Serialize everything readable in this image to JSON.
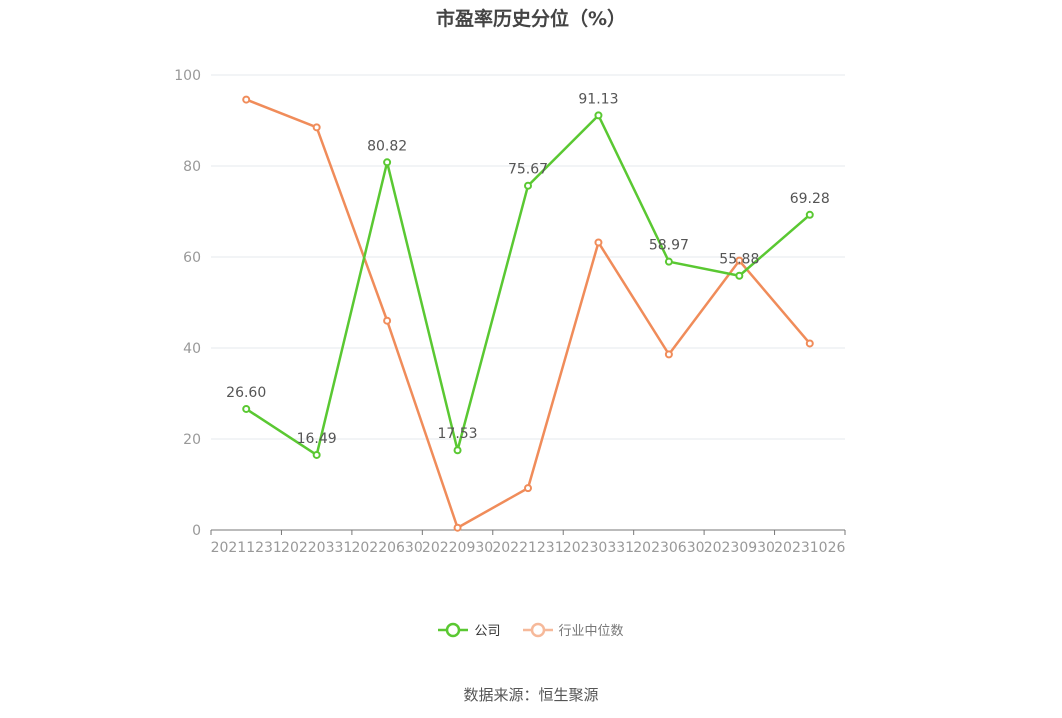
{
  "chart_data": {
    "type": "line",
    "title": "市盈率历史分位（%）",
    "categories": [
      "20211231",
      "20220331",
      "20220630",
      "20220930",
      "20221231",
      "20230331",
      "20230630",
      "20230930",
      "20231026"
    ],
    "ylim": [
      0,
      100
    ],
    "yticks": [
      0,
      20,
      40,
      60,
      80,
      100
    ],
    "grid": true,
    "legend_position": "bottom-center",
    "series": [
      {
        "name": "公司",
        "color": "#5ac832",
        "values": [
          26.6,
          16.49,
          80.82,
          17.53,
          75.67,
          91.13,
          58.97,
          55.88,
          69.28
        ],
        "labels": [
          "26.60",
          "16.49",
          "80.82",
          "17.53",
          "75.67",
          "91.13",
          "58.97",
          "55.88",
          "69.28"
        ]
      },
      {
        "name": "行业中位数",
        "color": "#f08c5a",
        "values": [
          94.6,
          88.5,
          46.0,
          0.5,
          9.2,
          63.2,
          38.6,
          59.2,
          41.0
        ]
      }
    ]
  },
  "legend": {
    "company": "公司",
    "industry": "行业中位数"
  },
  "source": "数据来源：恒生聚源"
}
